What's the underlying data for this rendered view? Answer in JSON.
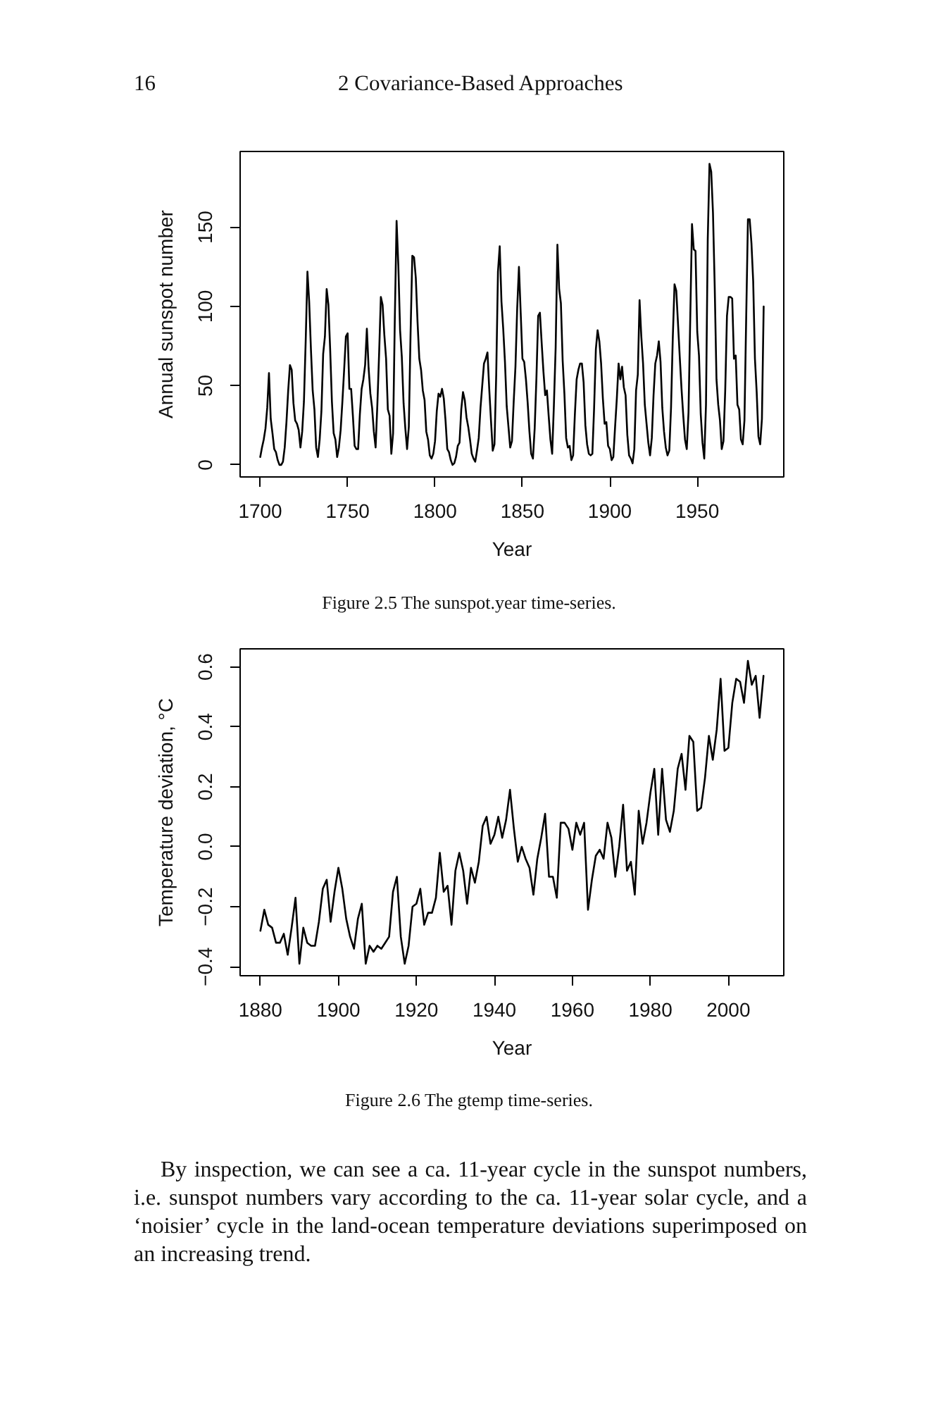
{
  "chart_data": [
    {
      "type": "line",
      "xlabel": "Year",
      "ylabel": "Annual sunspot number",
      "color": "#000000",
      "grid": false,
      "xlim": [
        1688.5,
        1999.5
      ],
      "ylim": [
        -7.6,
        197.8
      ],
      "xticks": [
        1700,
        1750,
        1800,
        1850,
        1900,
        1950
      ],
      "yticks": [
        0,
        50,
        100,
        150
      ],
      "annotations": [
        "16",
        "2 Covariance-Based Approaches",
        "Figure 2.5 The sunspot.year time-series."
      ],
      "x": [
        1700,
        1701,
        1702,
        1703,
        1704,
        1705,
        1706,
        1707,
        1708,
        1709,
        1710,
        1711,
        1712,
        1713,
        1714,
        1715,
        1716,
        1717,
        1718,
        1719,
        1720,
        1721,
        1722,
        1723,
        1724,
        1725,
        1726,
        1727,
        1728,
        1729,
        1730,
        1731,
        1732,
        1733,
        1734,
        1735,
        1736,
        1737,
        1738,
        1739,
        1740,
        1741,
        1742,
        1743,
        1744,
        1745,
        1746,
        1747,
        1748,
        1749,
        1750,
        1751,
        1752,
        1753,
        1754,
        1755,
        1756,
        1757,
        1758,
        1759,
        1760,
        1761,
        1762,
        1763,
        1764,
        1765,
        1766,
        1767,
        1768,
        1769,
        1770,
        1771,
        1772,
        1773,
        1774,
        1775,
        1776,
        1777,
        1778,
        1779,
        1780,
        1781,
        1782,
        1783,
        1784,
        1785,
        1786,
        1787,
        1788,
        1789,
        1790,
        1791,
        1792,
        1793,
        1794,
        1795,
        1796,
        1797,
        1798,
        1799,
        1800,
        1801,
        1802,
        1803,
        1804,
        1805,
        1806,
        1807,
        1808,
        1809,
        1810,
        1811,
        1812,
        1813,
        1814,
        1815,
        1816,
        1817,
        1818,
        1819,
        1820,
        1821,
        1822,
        1823,
        1824,
        1825,
        1826,
        1827,
        1828,
        1829,
        1830,
        1831,
        1832,
        1833,
        1834,
        1835,
        1836,
        1837,
        1838,
        1839,
        1840,
        1841,
        1842,
        1843,
        1844,
        1845,
        1846,
        1847,
        1848,
        1849,
        1850,
        1851,
        1852,
        1853,
        1854,
        1855,
        1856,
        1857,
        1858,
        1859,
        1860,
        1861,
        1862,
        1863,
        1864,
        1865,
        1866,
        1867,
        1868,
        1869,
        1870,
        1871,
        1872,
        1873,
        1874,
        1875,
        1876,
        1877,
        1878,
        1879,
        1880,
        1881,
        1882,
        1883,
        1884,
        1885,
        1886,
        1887,
        1888,
        1889,
        1890,
        1891,
        1892,
        1893,
        1894,
        1895,
        1896,
        1897,
        1898,
        1899,
        1900,
        1901,
        1902,
        1903,
        1904,
        1905,
        1906,
        1907,
        1908,
        1909,
        1910,
        1911,
        1912,
        1913,
        1914,
        1915,
        1916,
        1917,
        1918,
        1919,
        1920,
        1921,
        1922,
        1923,
        1924,
        1925,
        1926,
        1927,
        1928,
        1929,
        1930,
        1931,
        1932,
        1933,
        1934,
        1935,
        1936,
        1937,
        1938,
        1939,
        1940,
        1941,
        1942,
        1943,
        1944,
        1945,
        1946,
        1947,
        1948,
        1949,
        1950,
        1951,
        1952,
        1953,
        1954,
        1955,
        1956,
        1957,
        1958,
        1959,
        1960,
        1961,
        1962,
        1963,
        1964,
        1965,
        1966,
        1967,
        1968,
        1969,
        1970,
        1971,
        1972,
        1973,
        1974,
        1975,
        1976,
        1977,
        1978,
        1979,
        1980,
        1981,
        1982,
        1983,
        1984,
        1985,
        1986,
        1987,
        1988
      ],
      "values": [
        5,
        11,
        16,
        23,
        36,
        58,
        29,
        20,
        10,
        8,
        3,
        0,
        0,
        2,
        11,
        27,
        47,
        63,
        60,
        39,
        28,
        26,
        22,
        11,
        21,
        40,
        78,
        122,
        103,
        73,
        47,
        35,
        11,
        5,
        16,
        34,
        70,
        81,
        111,
        101,
        73,
        40,
        20,
        16,
        5,
        11,
        22,
        40,
        60,
        81,
        83,
        48,
        48,
        31,
        12,
        10,
        10,
        32,
        48,
        54,
        63,
        86,
        61,
        45,
        36,
        21,
        11,
        38,
        70,
        106,
        101,
        82,
        67,
        35,
        31,
        7,
        20,
        93,
        154,
        126,
        85,
        68,
        39,
        23,
        10,
        24,
        83,
        132,
        131,
        118,
        90,
        67,
        60,
        47,
        41,
        21,
        16,
        6,
        4,
        7,
        15,
        34,
        45,
        43,
        48,
        42,
        28,
        10,
        8,
        3,
        0,
        1,
        5,
        12,
        14,
        35,
        46,
        41,
        30,
        24,
        16,
        7,
        4,
        2,
        9,
        17,
        36,
        50,
        64,
        67,
        71,
        48,
        28,
        9,
        13,
        57,
        122,
        138,
        103,
        86,
        65,
        37,
        24,
        11,
        15,
        40,
        62,
        99,
        125,
        96,
        67,
        65,
        54,
        39,
        21,
        7,
        4,
        23,
        55,
        94,
        96,
        77,
        59,
        44,
        47,
        31,
        16,
        7,
        38,
        74,
        139,
        111,
        102,
        66,
        45,
        17,
        11,
        12,
        3,
        6,
        32,
        54,
        60,
        64,
        64,
        52,
        25,
        13,
        7,
        6,
        7,
        36,
        73,
        85,
        78,
        64,
        42,
        26,
        27,
        12,
        10,
        3,
        5,
        24,
        42,
        64,
        54,
        62,
        49,
        44,
        19,
        6,
        4,
        1,
        10,
        47,
        57,
        104,
        81,
        64,
        38,
        26,
        14,
        6,
        17,
        44,
        64,
        69,
        78,
        65,
        36,
        21,
        11,
        6,
        9,
        36,
        80,
        114,
        110,
        89,
        68,
        48,
        31,
        16,
        10,
        33,
        93,
        152,
        136,
        135,
        84,
        69,
        32,
        14,
        4,
        38,
        142,
        190,
        185,
        159,
        112,
        54,
        38,
        28,
        10,
        15,
        47,
        94,
        106,
        106,
        105,
        67,
        69,
        38,
        35,
        16,
        13,
        28,
        93,
        155,
        155,
        140,
        116,
        67,
        46,
        18,
        13,
        29,
        100
      ]
    },
    {
      "type": "line",
      "xlabel": "Year",
      "ylabel": "Temperature deviation, °C",
      "color": "#000000",
      "grid": false,
      "xlim": [
        1874.8,
        2014.2
      ],
      "ylim": [
        -0.43,
        0.66
      ],
      "xticks": [
        1880,
        1900,
        1920,
        1940,
        1960,
        1980,
        2000
      ],
      "yticks": [
        {
          "value": -0.4,
          "label": "−0.4"
        },
        {
          "value": -0.2,
          "label": "−0.2"
        },
        {
          "value": 0,
          "label": "0.0"
        },
        0.2,
        0.4,
        0.6
      ],
      "annotations": [
        "Figure 2.6 The gtemp time-series.",
        "By inspection, we can see a ca. 11-year cycle in the sunspot numbers, i.e. sunspot numbers vary according to the ca. 11-year solar cycle, and a ‘noisier’ cycle in the land-ocean temperature deviations superimposed on an increasing trend."
      ],
      "x": [
        1880,
        1881,
        1882,
        1883,
        1884,
        1885,
        1886,
        1887,
        1888,
        1889,
        1890,
        1891,
        1892,
        1893,
        1894,
        1895,
        1896,
        1897,
        1898,
        1899,
        1900,
        1901,
        1902,
        1903,
        1904,
        1905,
        1906,
        1907,
        1908,
        1909,
        1910,
        1911,
        1912,
        1913,
        1914,
        1915,
        1916,
        1917,
        1918,
        1919,
        1920,
        1921,
        1922,
        1923,
        1924,
        1925,
        1926,
        1927,
        1928,
        1929,
        1930,
        1931,
        1932,
        1933,
        1934,
        1935,
        1936,
        1937,
        1938,
        1939,
        1940,
        1941,
        1942,
        1943,
        1944,
        1945,
        1946,
        1947,
        1948,
        1949,
        1950,
        1951,
        1952,
        1953,
        1954,
        1955,
        1956,
        1957,
        1958,
        1959,
        1960,
        1961,
        1962,
        1963,
        1964,
        1965,
        1966,
        1967,
        1968,
        1969,
        1970,
        1971,
        1972,
        1973,
        1974,
        1975,
        1976,
        1977,
        1978,
        1979,
        1980,
        1981,
        1982,
        1983,
        1984,
        1985,
        1986,
        1987,
        1988,
        1989,
        1990,
        1991,
        1992,
        1993,
        1994,
        1995,
        1996,
        1997,
        1998,
        1999,
        2000,
        2001,
        2002,
        2003,
        2004,
        2005,
        2006,
        2007,
        2008,
        2009
      ],
      "values": [
        -0.28,
        -0.21,
        -0.26,
        -0.27,
        -0.32,
        -0.32,
        -0.29,
        -0.36,
        -0.27,
        -0.17,
        -0.39,
        -0.27,
        -0.32,
        -0.33,
        -0.33,
        -0.25,
        -0.14,
        -0.11,
        -0.25,
        -0.15,
        -0.07,
        -0.14,
        -0.24,
        -0.3,
        -0.34,
        -0.24,
        -0.19,
        -0.39,
        -0.33,
        -0.35,
        -0.33,
        -0.34,
        -0.32,
        -0.3,
        -0.15,
        -0.1,
        -0.3,
        -0.39,
        -0.33,
        -0.2,
        -0.19,
        -0.14,
        -0.26,
        -0.22,
        -0.22,
        -0.17,
        -0.02,
        -0.15,
        -0.13,
        -0.26,
        -0.08,
        -0.02,
        -0.08,
        -0.19,
        -0.07,
        -0.12,
        -0.05,
        0.07,
        0.1,
        0.01,
        0.04,
        0.1,
        0.03,
        0.09,
        0.19,
        0.06,
        -0.05,
        0.0,
        -0.04,
        -0.07,
        -0.16,
        -0.04,
        0.03,
        0.11,
        -0.1,
        -0.1,
        -0.17,
        0.08,
        0.08,
        0.06,
        -0.01,
        0.08,
        0.04,
        0.08,
        -0.21,
        -0.11,
        -0.03,
        -0.01,
        -0.04,
        0.08,
        0.03,
        -0.1,
        0.0,
        0.14,
        -0.08,
        -0.05,
        -0.16,
        0.12,
        0.01,
        0.08,
        0.18,
        0.26,
        0.04,
        0.26,
        0.09,
        0.05,
        0.12,
        0.26,
        0.31,
        0.19,
        0.37,
        0.35,
        0.12,
        0.13,
        0.23,
        0.37,
        0.29,
        0.39,
        0.56,
        0.32,
        0.33,
        0.48,
        0.56,
        0.55,
        0.48,
        0.62,
        0.54,
        0.57,
        0.43,
        0.57
      ]
    }
  ]
}
